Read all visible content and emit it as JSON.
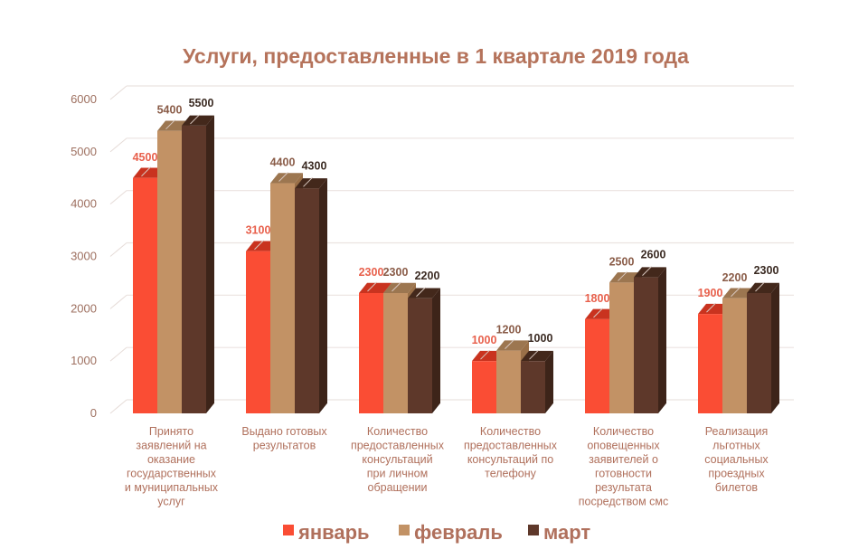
{
  "chart_data": {
    "type": "bar",
    "title": "Услуги, предоставленные в 1 квартале 2019 года",
    "xlabel": "",
    "ylabel": "",
    "ylim": [
      0,
      6000
    ],
    "yticks": [
      "0",
      "1000",
      "2000",
      "3000",
      "4000",
      "5000",
      "6000"
    ],
    "grid": true,
    "style": "3d-clustered-column",
    "legend_position": "bottom",
    "categories": [
      [
        "Принято",
        "заявлений  на",
        "оказание",
        "государственных",
        "и муниципальных",
        "услуг"
      ],
      [
        "Выдано готовых",
        "результатов"
      ],
      [
        "Количество",
        "предоставленных",
        "консультаций",
        "при личном",
        "обращении"
      ],
      [
        "Количество",
        "предоставленных",
        "консультаций    по",
        "телефону"
      ],
      [
        "Количество",
        "оповещенных",
        "заявителей  о",
        "готовности",
        "результата",
        "посредством  смс"
      ],
      [
        "Реализация",
        "льготных",
        "социальных",
        "проездных",
        "билетов"
      ]
    ],
    "series": [
      {
        "name": "январь",
        "color": "#fa4d34",
        "side": "#c23322",
        "top": "#c9331f",
        "label_color": "#e8604c",
        "values": [
          4500,
          3100,
          2300,
          1000,
          1800,
          1900
        ]
      },
      {
        "name": "февраль",
        "color": "#c29265",
        "side": "#9a7048",
        "top": "#9c7650",
        "label_color": "#8a5c48",
        "values": [
          5400,
          4400,
          2300,
          1200,
          2500,
          2200
        ]
      },
      {
        "name": "март",
        "color": "#5e382a",
        "side": "#3d2419",
        "top": "#43281b",
        "label_color": "#3a2a22",
        "values": [
          5500,
          4300,
          2200,
          1000,
          2600,
          2300
        ]
      }
    ]
  }
}
